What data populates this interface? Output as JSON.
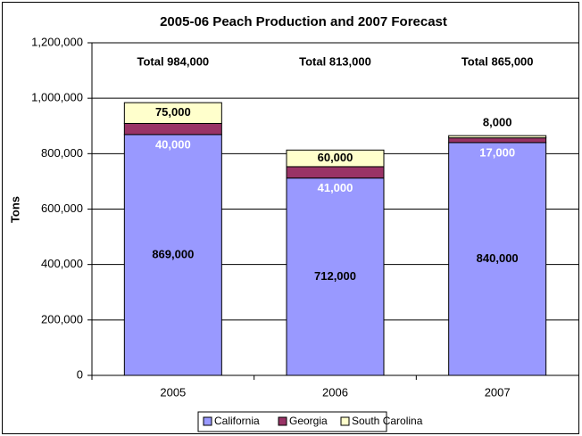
{
  "chart_data": {
    "type": "stacked_bar",
    "title": "2005-06 Peach Production and 2007 Forecast",
    "y_label": "Tons",
    "categories": [
      "2005",
      "2006",
      "2007"
    ],
    "series": [
      {
        "name": "California",
        "color": "#9999ff",
        "values": [
          869000,
          712000,
          840000
        ],
        "value_labels": [
          "869,000",
          "712,000",
          "840,000"
        ]
      },
      {
        "name": "Georgia",
        "color": "#993366",
        "values": [
          40000,
          41000,
          17000
        ],
        "value_labels": [
          "40,000",
          "41,000",
          "17,000"
        ]
      },
      {
        "name": "South Carolina",
        "color": "#ffffcc",
        "values": [
          75000,
          60000,
          8000
        ],
        "value_labels": [
          "75,000",
          "60,000",
          "8,000"
        ]
      }
    ],
    "annotations": [
      "Total 984,000",
      "Total 813,000",
      "Total 865,000"
    ],
    "ylim": [
      0,
      1200000
    ],
    "yticks": [
      0,
      {
        "value": 200000,
        "label": "200,000"
      },
      {
        "value": 400000,
        "label": "400,000"
      },
      {
        "value": 600000,
        "label": "600,000"
      },
      {
        "value": 800000,
        "label": "800,000"
      },
      {
        "value": 1000000,
        "label": "1,000,000"
      },
      {
        "value": 1200000,
        "label": "1,200,000"
      }
    ],
    "grid": true,
    "legend": "bottom"
  }
}
